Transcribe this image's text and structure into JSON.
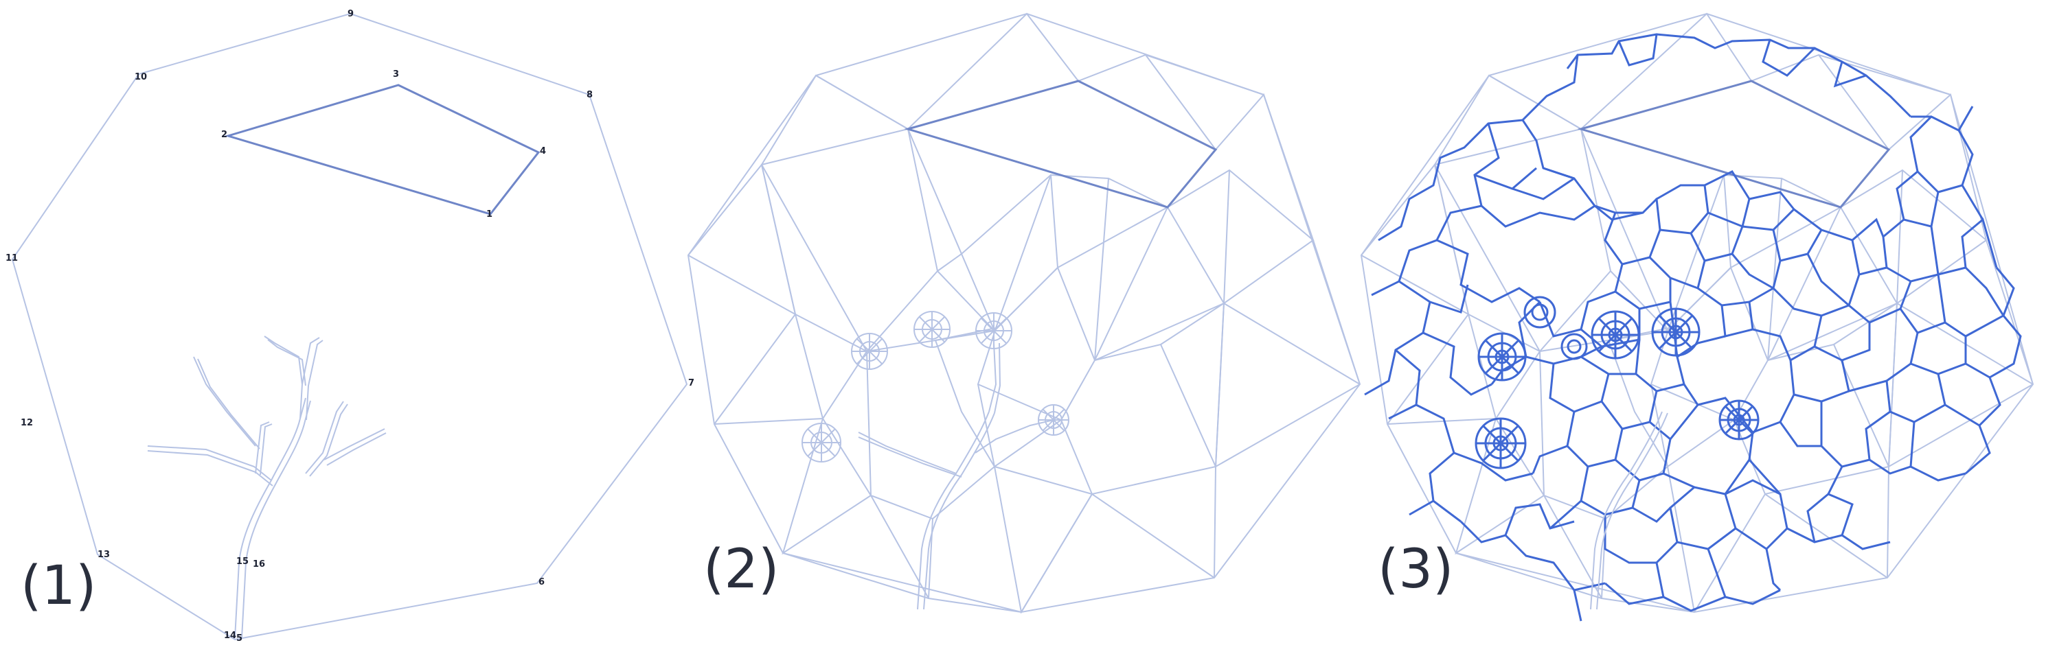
{
  "panels": [
    {
      "label": "(1)"
    },
    {
      "label": "(2)"
    },
    {
      "label": "(3)"
    }
  ],
  "vertex_labels": [
    "1",
    "2",
    "3",
    "4",
    "5",
    "6",
    "7",
    "8",
    "9",
    "10",
    "11",
    "12",
    "13",
    "14",
    "15",
    "16"
  ],
  "colors": {
    "light_edge": "#b6c3e4",
    "bold_edge": "#6f86c8",
    "dual_edge": "#3f68d4",
    "label": "#1d2233"
  }
}
